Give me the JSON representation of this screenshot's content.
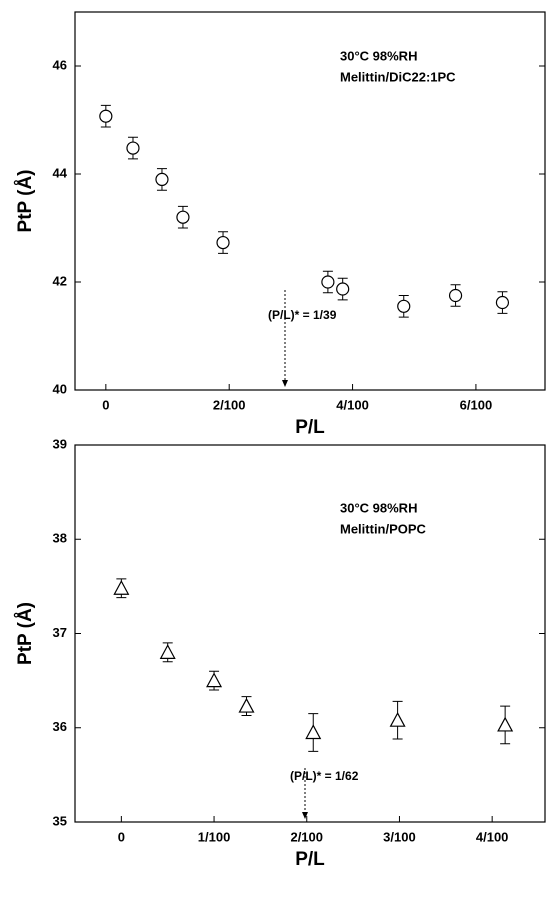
{
  "chart_data": [
    {
      "type": "scatter",
      "marker": "circle",
      "xlabel": "P/L",
      "ylabel": "PtP (Å)",
      "notes": [
        "30°C 98%RH",
        "Melittin/DiC22:1PC"
      ],
      "threshold_label": "(P/L)* = 1/39",
      "x": [
        0,
        0.0044,
        0.0091,
        0.0125,
        0.019,
        0.036,
        0.0384,
        0.0483,
        0.0567,
        0.0643
      ],
      "values": [
        45.07,
        44.48,
        43.9,
        43.2,
        42.73,
        42.0,
        41.87,
        41.55,
        41.75,
        41.62
      ],
      "errors": [
        0.2,
        0.2,
        0.2,
        0.2,
        0.2,
        0.2,
        0.2,
        0.2,
        0.2,
        0.2
      ],
      "xlim": [
        -0.005,
        0.0712
      ],
      "ylim": [
        40,
        47
      ],
      "xticks": [
        {
          "value": 0,
          "label": "0"
        },
        {
          "value": 0.02,
          "label": "2/100"
        },
        {
          "value": 0.04,
          "label": "4/100"
        },
        {
          "value": 0.06,
          "label": "6/100"
        }
      ],
      "yticks": [
        40,
        42,
        44,
        46
      ]
    },
    {
      "type": "scatter",
      "marker": "triangle",
      "xlabel": "P/L",
      "ylabel": "PtP (Å)",
      "notes": [
        "30°C 98%RH",
        "Melittin/POPC"
      ],
      "threshold_label": "(P/L)* = 1/62",
      "x": [
        0,
        0.005,
        0.01,
        0.0135,
        0.0207,
        0.0298,
        0.0414
      ],
      "values": [
        37.48,
        36.8,
        36.5,
        36.23,
        35.95,
        36.08,
        36.03
      ],
      "errors": [
        0.1,
        0.1,
        0.1,
        0.1,
        0.2,
        0.2,
        0.2
      ],
      "xlim": [
        -0.005,
        0.0457
      ],
      "ylim": [
        35,
        39
      ],
      "xticks": [
        {
          "value": 0,
          "label": "0"
        },
        {
          "value": 0.01,
          "label": "1/100"
        },
        {
          "value": 0.02,
          "label": "2/100"
        },
        {
          "value": 0.03,
          "label": "3/100"
        },
        {
          "value": 0.04,
          "label": "4/100"
        }
      ],
      "yticks": [
        35,
        36,
        37,
        38,
        39
      ]
    }
  ]
}
